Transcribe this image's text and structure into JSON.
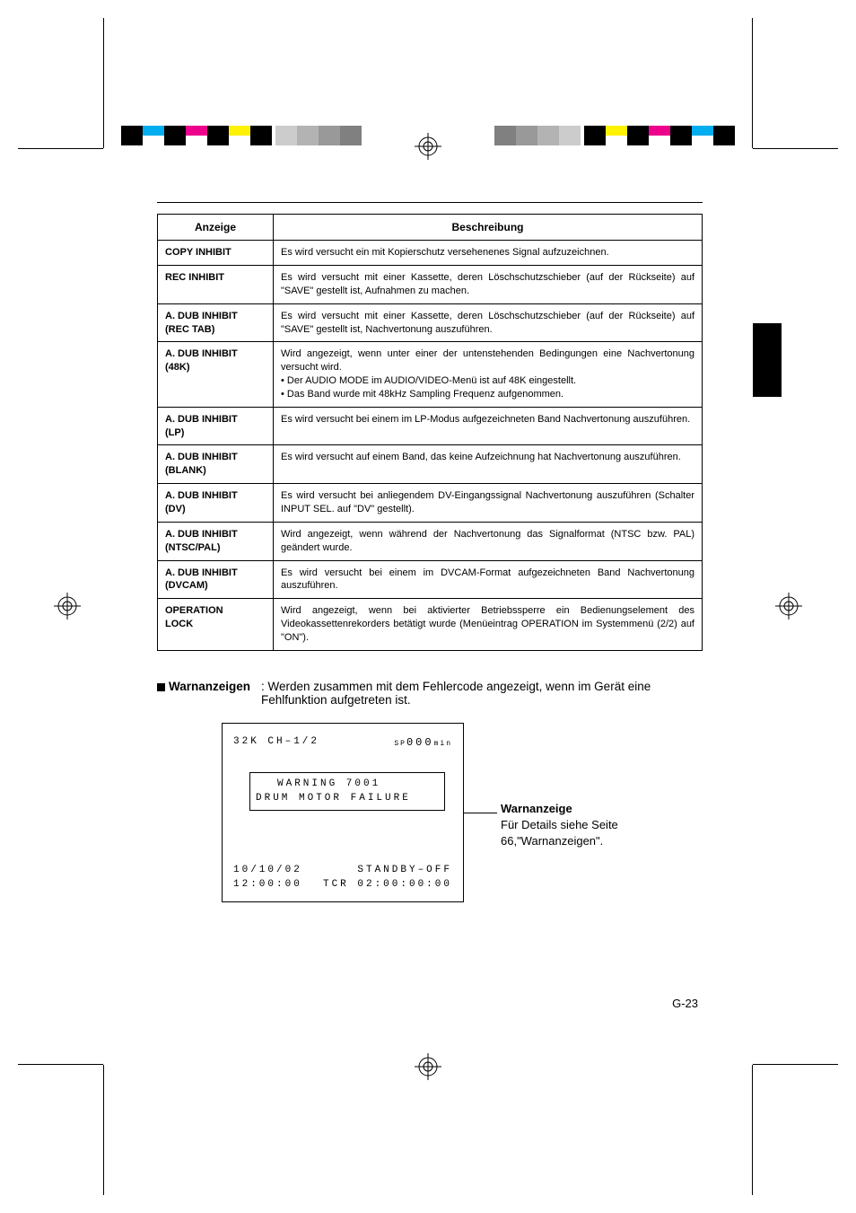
{
  "regbar_colors": {
    "black": "#000000",
    "cyan": "#00adef",
    "magenta": "#ec008c",
    "yellow": "#fff200",
    "gray_light": "#cccccc",
    "gray_mid": "#b3b3b3",
    "gray_dark": "#999999",
    "gray_darker": "#808080"
  },
  "table": {
    "headers": {
      "col1": "Anzeige",
      "col2": "Beschreibung"
    },
    "rows": [
      {
        "label": "COPY INHIBIT",
        "desc": "Es wird versucht ein mit Kopierschutz versehenenes Signal aufzuzeichnen."
      },
      {
        "label": "REC INHIBIT",
        "desc": "Es wird versucht mit einer Kassette, deren Löschschutzschieber (auf der Rückseite) auf \"SAVE\" gestellt ist, Aufnahmen zu machen."
      },
      {
        "label": "A. DUB INHIBIT\n(REC TAB)",
        "desc": "Es wird versucht mit einer Kassette, deren Löschschutzschieber (auf der Rückseite) auf \"SAVE\" gestellt ist, Nachvertonung auszuführen."
      },
      {
        "label": "A. DUB INHIBIT\n(48K)",
        "desc": "Wird angezeigt, wenn unter einer der untenstehenden Bedingungen eine Nach­vertonung versucht wird.\n• Der AUDIO MODE im AUDIO/VIDEO-Menü ist auf 48K eingestellt.\n• Das Band wurde mit 48kHz Sampling Frequenz aufgenommen."
      },
      {
        "label": "A. DUB INHIBIT\n(LP)",
        "desc": "Es wird versucht bei einem im LP-Modus aufgezeichneten Band Nachvertonung auszuführen."
      },
      {
        "label": "A. DUB INHIBIT\n(BLANK)",
        "desc": "Es wird versucht auf einem Band, das keine Aufzeichnung hat Nachvertonung auszu­führen."
      },
      {
        "label": "A. DUB INHIBIT\n(DV)",
        "desc": "Es wird versucht bei anliegendem DV-Eingangssignal  Nachvertonung auszuführen (Schalter INPUT SEL. auf \"DV\" gestellt)."
      },
      {
        "label": "A. DUB INHIBIT\n(NTSC/PAL)",
        "desc": "Wird angezeigt, wenn während der Nachvertonung das Signalformat (NTSC bzw. PAL) geändert wurde."
      },
      {
        "label": "A. DUB INHIBIT\n(DVCAM)",
        "desc": "Es wird versucht bei einem im DVCAM-Format aufgezeichneten Band Nachvertonung auszuführen."
      },
      {
        "label": "OPERATION\nLOCK",
        "desc": "Wird angezeigt, wenn bei aktivierter Betriebssperre ein Bedienungselement des Videokassettenrekorders betätigt wurde (Menüeintrag OPERATION im Systemmenü (2/2) auf  \"ON\")."
      }
    ]
  },
  "warn_section": {
    "heading": "Warnanzeigen",
    "text": ": Werden zusammen mit dem Fehlercode angezeigt, wenn im Gerät eine Fehlfunktion aufgetreten ist."
  },
  "osd": {
    "top_left": "32K CH–1/2",
    "top_right_sp": "SP",
    "top_right_val": "000",
    "top_right_unit": "min",
    "warning_l1": "WARNING 7001",
    "warning_l2": "DRUM MOTOR FAILURE",
    "date": "10/10/02",
    "standby": "STANDBY–OFF",
    "time": "12:00:00",
    "tcr": "TCR 02:00:00:00"
  },
  "callout": {
    "title": "Warnanzeige",
    "line1": "Für Details siehe Seite",
    "line2": "66,\"Warnanzeigen\"."
  },
  "page_number": "G-23"
}
